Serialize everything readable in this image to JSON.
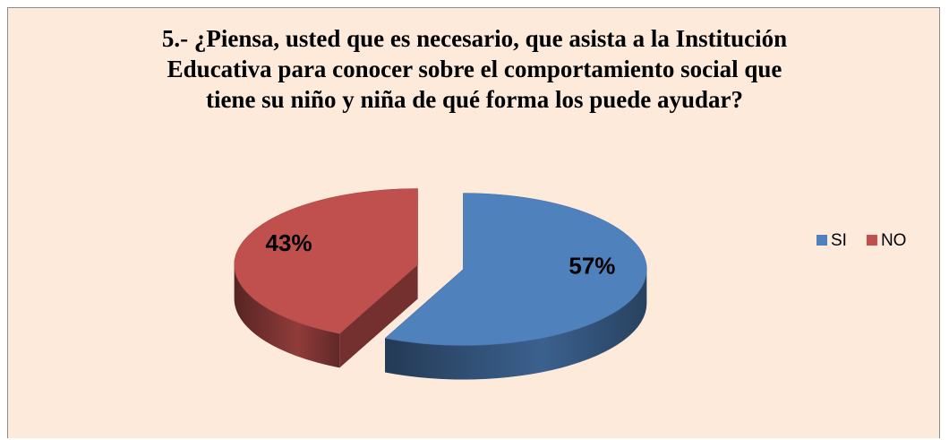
{
  "chart_data": {
    "type": "pie",
    "title": "5.- ¿Piensa, usted que es necesario, que asista a la Institución Educativa para conocer sobre el comportamiento social que tiene su niño y niña de qué forma los puede ayudar?",
    "categories": [
      "SI",
      "NO"
    ],
    "values": [
      57,
      43
    ],
    "value_labels": [
      "57%",
      "43%"
    ],
    "colors": [
      "#4f81bd",
      "#c0504d"
    ],
    "legend": "right"
  }
}
